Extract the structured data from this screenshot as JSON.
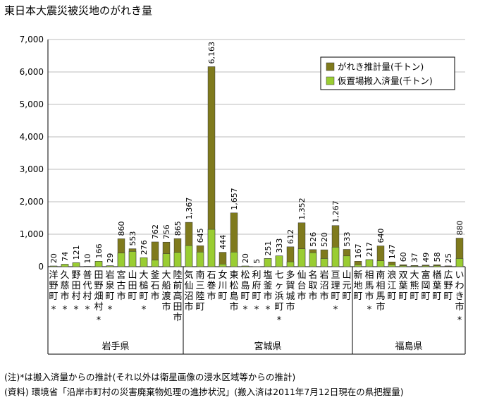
{
  "page": {
    "title": "東日本大震災被災地のがれき量",
    "notes": [
      "(注)*は搬入済量からの推計(それ以外は衛星画像の浸水区域等からの推計)",
      "(資料) 環境省「沿岸市町村の災害廃棄物処理の進捗状況」(搬入済は2011年7月12日現在の県把握量)"
    ]
  },
  "chart_data": {
    "type": "bar",
    "stacked_overlay": true,
    "title": "東日本大震災被災地のがれき量",
    "ylim": [
      0,
      7000
    ],
    "yticks": [
      "0",
      "1,000",
      "2,000",
      "3,000",
      "4,000",
      "5,000",
      "6,000",
      "7,000"
    ],
    "ytick_values": [
      0,
      1000,
      2000,
      3000,
      4000,
      5000,
      6000,
      7000
    ],
    "grid": true,
    "legend_position": "top-right",
    "colors": {
      "total": "#7f7a1d",
      "carried": "#9acd32",
      "bar_edge": "#333333",
      "grid": "#bdbdbd"
    },
    "categories": [
      {
        "name": "洋野町",
        "star": true
      },
      {
        "name": "久慈市",
        "star": true
      },
      {
        "name": "野田村",
        "star": true
      },
      {
        "name": "普代村",
        "star": true
      },
      {
        "name": "田野畑村",
        "star": true
      },
      {
        "name": "岩泉町",
        "star": true
      },
      {
        "name": "宮古市",
        "star": false
      },
      {
        "name": "山田町",
        "star": false
      },
      {
        "name": "大槌町",
        "star": true
      },
      {
        "name": "釜石市",
        "star": false
      },
      {
        "name": "大船渡市",
        "star": false
      },
      {
        "name": "陸前高田市",
        "star": false
      },
      {
        "name": "気仙沼市",
        "star": false
      },
      {
        "name": "南三陸町",
        "star": false
      },
      {
        "name": "石巻市",
        "star": false
      },
      {
        "name": "女川町",
        "star": false
      },
      {
        "name": "東松島市",
        "star": false
      },
      {
        "name": "松島町",
        "star": true
      },
      {
        "name": "利府町",
        "star": true
      },
      {
        "name": "塩釜市",
        "star": true
      },
      {
        "name": "七ヶ浜町",
        "star": true
      },
      {
        "name": "多賀城市",
        "star": false
      },
      {
        "name": "仙台市",
        "star": false
      },
      {
        "name": "名取市",
        "star": false
      },
      {
        "name": "岩沼市",
        "star": false
      },
      {
        "name": "亘理町",
        "star": true
      },
      {
        "name": "山元町",
        "star": false
      },
      {
        "name": "新地町",
        "star": false
      },
      {
        "name": "相馬市",
        "star": true
      },
      {
        "name": "南相馬市",
        "star": false
      },
      {
        "name": "浪江町",
        "star": false
      },
      {
        "name": "双葉町",
        "star": false
      },
      {
        "name": "大熊町",
        "star": false
      },
      {
        "name": "富岡町",
        "star": false
      },
      {
        "name": "楢葉町",
        "star": false
      },
      {
        "name": "広野町",
        "star": false
      },
      {
        "name": "いわき市",
        "star": true
      }
    ],
    "value_labels": [
      "20",
      "74",
      "121",
      "10",
      "166",
      "29",
      "860",
      "553",
      "276",
      "762",
      "756",
      "865",
      "1,367",
      "645",
      "6,163",
      "444",
      "1,657",
      "20",
      "5",
      "251",
      "333",
      "612",
      "1,352",
      "526",
      "520",
      "1,267",
      "533",
      "167",
      "217",
      "640",
      "147",
      "60",
      "37",
      "49",
      "58",
      "25",
      "880"
    ],
    "series": [
      {
        "name": "がれき推計量(千トン)",
        "values": [
          20,
          74,
          121,
          10,
          166,
          29,
          860,
          553,
          276,
          762,
          756,
          865,
          1367,
          645,
          6163,
          444,
          1657,
          20,
          5,
          251,
          333,
          612,
          1352,
          526,
          520,
          1267,
          533,
          167,
          217,
          640,
          147,
          60,
          37,
          49,
          58,
          25,
          880
        ]
      },
      {
        "name": "仮置場搬入済量(千トン)",
        "values": [
          20,
          74,
          121,
          10,
          166,
          29,
          420,
          470,
          276,
          200,
          400,
          440,
          650,
          450,
          1150,
          80,
          450,
          20,
          5,
          251,
          333,
          150,
          550,
          430,
          250,
          600,
          330,
          60,
          217,
          180,
          60,
          30,
          20,
          25,
          30,
          10,
          250
        ]
      }
    ],
    "groups": [
      {
        "name": "岩手県",
        "start": 0,
        "end": 11
      },
      {
        "name": "宮城県",
        "start": 12,
        "end": 26
      },
      {
        "name": "福島県",
        "start": 27,
        "end": 36
      }
    ],
    "star_mark": "*"
  }
}
